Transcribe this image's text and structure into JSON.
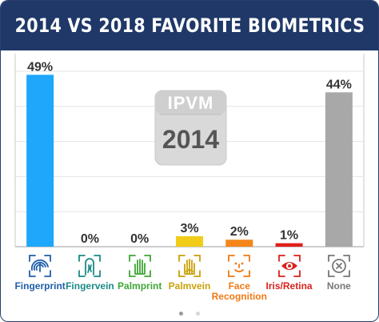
{
  "title": "2014 VS 2018 FAVORITE BIOMETRICS",
  "watermark": {
    "brand": "IPVM",
    "year": "2014"
  },
  "colors": {
    "header": "#1f3868"
  },
  "chart_data": {
    "type": "bar",
    "title": "2014 VS 2018 FAVORITE BIOMETRICS",
    "ylim": [
      0,
      50
    ],
    "grid": true,
    "categories": [
      "Fingerprint",
      "Fingervein",
      "Palmprint",
      "Palmvein",
      "Face Recognition",
      "Iris/Retina",
      "None"
    ],
    "values": [
      49,
      0,
      0,
      3,
      2,
      1,
      44
    ],
    "data_labels": [
      "49%",
      "0%",
      "0%",
      "3%",
      "2%",
      "1%",
      "44%"
    ],
    "bar_colors": [
      "#1ea7fb",
      "#1ea7fb",
      "#1ea7fb",
      "#f1cc19",
      "#f4861a",
      "#e12019",
      "#a8a8a8"
    ],
    "label_colors": [
      "#1f5ea8",
      "#1a8a86",
      "#3fa635",
      "#c9a10a",
      "#ef7a16",
      "#d9221d",
      "#777777"
    ],
    "icons": [
      "fingerprint-icon",
      "fingervein-icon",
      "palmprint-icon",
      "palmvein-icon",
      "face-recognition-icon",
      "iris-icon",
      "none-icon"
    ]
  },
  "pagination": {
    "current": 0,
    "count": 2
  }
}
